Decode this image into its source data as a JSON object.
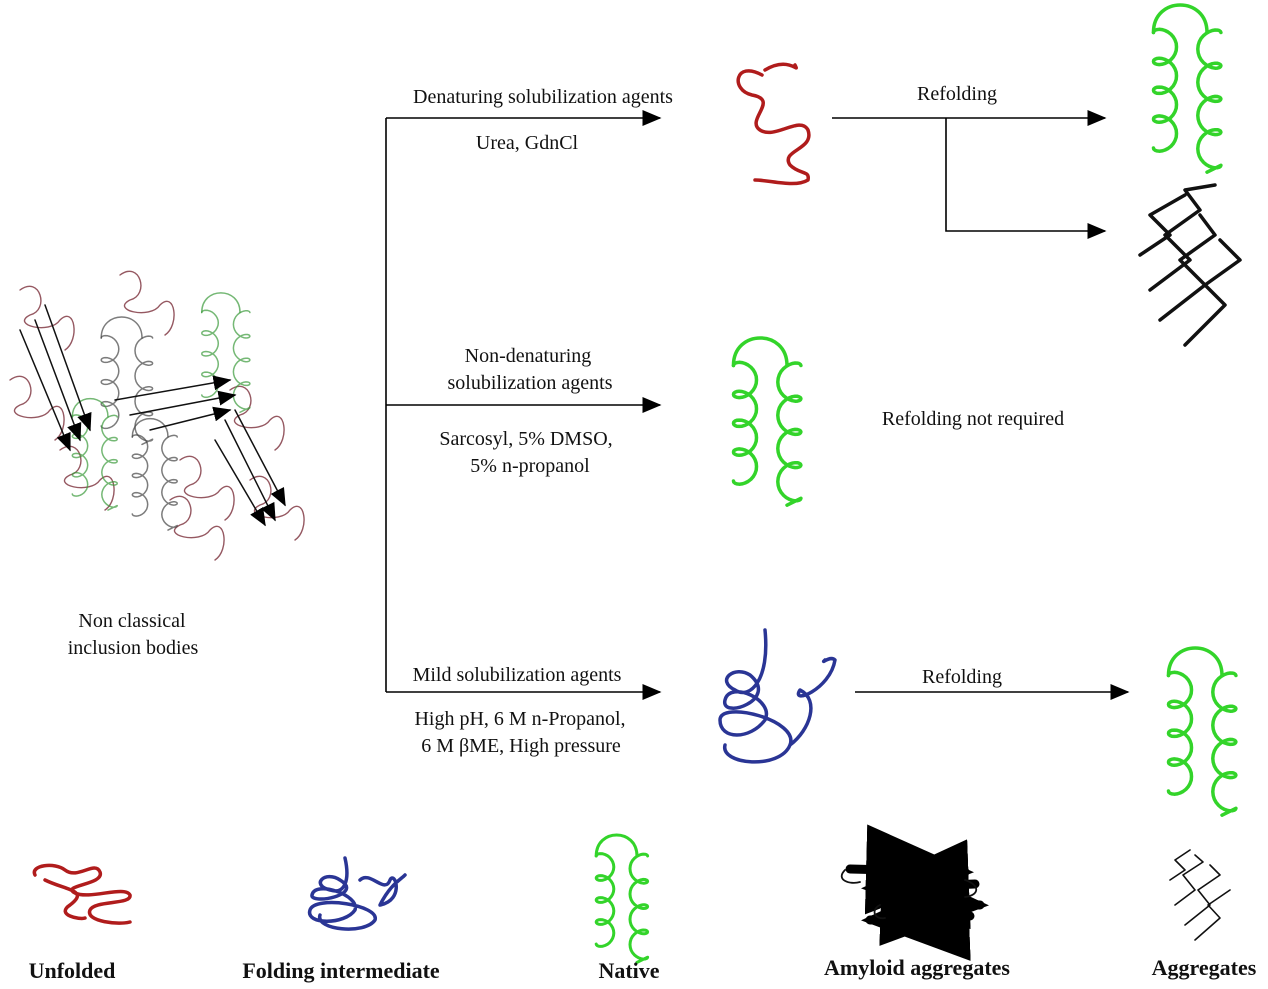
{
  "colors": {
    "unfolded": "#b01c1c",
    "intermediate": "#2a3595",
    "native": "#33d42a",
    "aggregate": "#111111",
    "arrow": "#000000"
  },
  "source": {
    "label_line1": "Non classical",
    "label_line2": "inclusion bodies"
  },
  "branches": [
    {
      "agent": "Denaturing solubilization agents",
      "examples": [
        "Urea, GdnCl"
      ],
      "product": "unfolded",
      "step": "Refolding",
      "outcomes": [
        "native",
        "aggregates"
      ]
    },
    {
      "agent_lines": [
        "Non-denaturing",
        "solubilization agents"
      ],
      "examples": [
        "Sarcosyl, 5% DMSO,",
        "5% n-propanol"
      ],
      "product": "native",
      "note": "Refolding not required"
    },
    {
      "agent": "Mild solubilization agents",
      "examples": [
        "High pH, 6 M n-Propanol,",
        "6 M βME, High pressure"
      ],
      "product": "folding-intermediate",
      "step": "Refolding",
      "outcomes": [
        "native"
      ]
    }
  ],
  "legend": [
    "Unfolded",
    "Folding intermediate",
    "Native",
    "Amyloid aggregates",
    "Aggregates"
  ]
}
